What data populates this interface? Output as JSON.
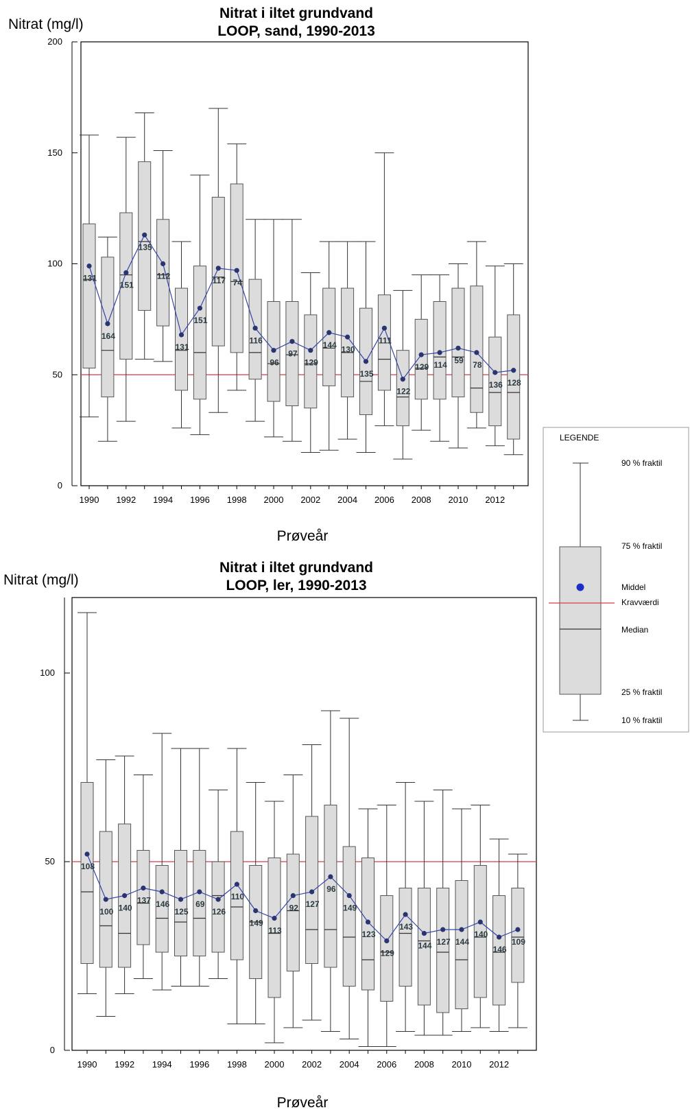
{
  "chart_data": [
    {
      "type": "box",
      "title": [
        "Nitrat i iltet grundvand",
        "LOOP, sand, 1990-2013"
      ],
      "ylabel": "Nitrat (mg/l)",
      "xlabel": "Prøveår",
      "ylim": [
        0,
        200
      ],
      "yticks": [
        0,
        50,
        100,
        150,
        200
      ],
      "xticks": [
        1990,
        1992,
        1994,
        1996,
        1998,
        2000,
        2002,
        2004,
        2006,
        2008,
        2010,
        2012
      ],
      "requirement_value": 50,
      "years": [
        1990,
        1991,
        1992,
        1993,
        1994,
        1995,
        1996,
        1997,
        1998,
        1999,
        2000,
        2001,
        2002,
        2003,
        2004,
        2005,
        2006,
        2007,
        2008,
        2009,
        2010,
        2011,
        2012,
        2013
      ],
      "p10": [
        31,
        20,
        29,
        57,
        56,
        26,
        23,
        33,
        43,
        29,
        22,
        20,
        15,
        16,
        21,
        15,
        27,
        12,
        25,
        20,
        17,
        26,
        18,
        14
      ],
      "p25": [
        53,
        40,
        57,
        79,
        72,
        43,
        39,
        63,
        60,
        48,
        38,
        36,
        35,
        45,
        40,
        32,
        43,
        27,
        39,
        39,
        40,
        33,
        27,
        21
      ],
      "median": [
        93,
        61,
        95,
        110,
        95,
        61,
        60,
        94,
        92,
        60,
        55,
        59,
        55,
        62,
        60,
        47,
        57,
        40,
        53,
        58,
        58,
        44,
        42,
        42
      ],
      "p75": [
        118,
        103,
        123,
        146,
        120,
        89,
        99,
        130,
        136,
        93,
        83,
        83,
        77,
        89,
        89,
        80,
        86,
        61,
        75,
        83,
        89,
        90,
        67,
        77
      ],
      "p90": [
        158,
        112,
        157,
        168,
        151,
        110,
        140,
        170,
        154,
        120,
        120,
        120,
        96,
        110,
        110,
        110,
        150,
        88,
        95,
        95,
        100,
        110,
        99,
        100
      ],
      "mean": [
        99,
        73,
        96,
        113,
        100,
        68,
        80,
        98,
        97,
        71,
        61,
        65,
        61,
        69,
        67,
        56,
        71,
        48,
        59,
        60,
        62,
        60,
        51,
        52
      ],
      "n": [
        "131",
        "164",
        "151",
        "135",
        "112",
        "131",
        "151",
        "117",
        "74",
        "116",
        "96",
        "97",
        "129",
        "144",
        "130",
        "135",
        "111",
        "122",
        "129",
        "114",
        "59",
        "78",
        "136",
        "128"
      ]
    },
    {
      "type": "box",
      "title": [
        "Nitrat i iltet grundvand",
        "LOOP, ler, 1990-2013"
      ],
      "ylabel": "Nitrat (mg/l)",
      "xlabel": "Prøveår",
      "ylim": [
        0,
        120
      ],
      "yticks": [
        0,
        50,
        100
      ],
      "xticks": [
        1990,
        1992,
        1994,
        1996,
        1998,
        2000,
        2002,
        2004,
        2006,
        2008,
        2010,
        2012
      ],
      "requirement_value": 50,
      "years": [
        1990,
        1991,
        1992,
        1993,
        1994,
        1995,
        1996,
        1997,
        1998,
        1999,
        2000,
        2001,
        2002,
        2003,
        2004,
        2005,
        2006,
        2007,
        2008,
        2009,
        2010,
        2011,
        2012,
        2013
      ],
      "p10": [
        15,
        9,
        15,
        19,
        16,
        17,
        17,
        19,
        7,
        7,
        2,
        6,
        8,
        5,
        3,
        1,
        1,
        5,
        4,
        4,
        5,
        6,
        5,
        6
      ],
      "p25": [
        23,
        22,
        22,
        28,
        26,
        25,
        25,
        26,
        24,
        19,
        14,
        21,
        23,
        22,
        17,
        16,
        13,
        17,
        12,
        10,
        11,
        14,
        12,
        18
      ],
      "median": [
        42,
        33,
        31,
        39,
        35,
        34,
        35,
        41,
        38,
        34,
        31,
        37,
        32,
        32,
        30,
        24,
        26,
        31,
        29,
        26,
        24,
        30,
        26,
        30
      ],
      "p75": [
        71,
        58,
        60,
        53,
        49,
        53,
        53,
        50,
        58,
        49,
        51,
        52,
        62,
        65,
        54,
        51,
        41,
        43,
        43,
        43,
        45,
        49,
        41,
        43
      ],
      "p90": [
        116,
        77,
        78,
        73,
        84,
        80,
        80,
        69,
        80,
        71,
        66,
        73,
        81,
        90,
        88,
        64,
        65,
        71,
        66,
        69,
        64,
        65,
        56,
        52
      ],
      "mean": [
        52,
        40,
        41,
        43,
        42,
        40,
        42,
        40,
        44,
        37,
        35,
        41,
        42,
        46,
        41,
        34,
        29,
        36,
        31,
        32,
        32,
        34,
        30,
        32
      ],
      "n": [
        "108",
        "100",
        "140",
        "137",
        "146",
        "125",
        "69",
        "126",
        "110",
        "149",
        "113",
        "92",
        "127",
        "96",
        "149",
        "123",
        "129",
        "143",
        "144",
        "127",
        "144",
        "140",
        "146",
        "109"
      ]
    }
  ],
  "legend": {
    "title": "LEGENDE",
    "p90": "90 % fraktil",
    "p75": "75 % fraktil",
    "mean": "Middel",
    "requirement": "Kravværdi",
    "median": "Median",
    "p25": "25 % fraktil",
    "p10": "10 % fraktil"
  },
  "colors": {
    "box_fill": "#dcdcdc",
    "box_stroke": "#555555",
    "mean_line": "#3344aa",
    "mean_dot": "#2a3570",
    "requirement_line": "#d83a4a",
    "legend_dot": "#1a2fc8"
  }
}
